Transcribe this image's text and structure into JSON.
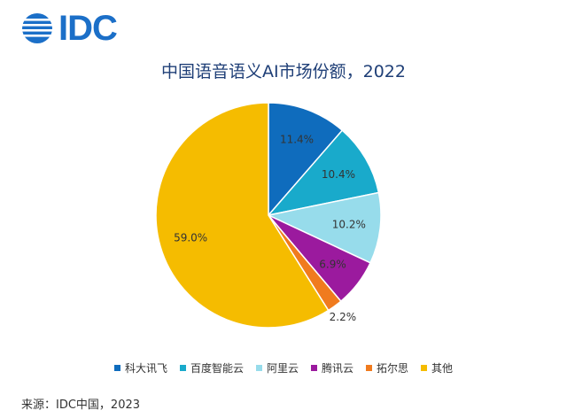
{
  "logo": {
    "text": "IDC"
  },
  "chart_data": {
    "type": "pie",
    "title": "中国语音语义AI市场份额，2022",
    "categories": [
      "科大讯飞",
      "百度智能云",
      "阿里云",
      "腾讯云",
      "拓尔思",
      "其他"
    ],
    "values": [
      11.4,
      10.4,
      10.2,
      6.9,
      2.2,
      59.0
    ],
    "labels": [
      "11.4%",
      "10.4%",
      "10.2%",
      "6.9%",
      "2.2%",
      "59.0%"
    ],
    "colors": [
      "#0F6CBD",
      "#19AACB",
      "#97DCEB",
      "#9B1A9E",
      "#F07B1E",
      "#F5BC00"
    ],
    "legend_position": "bottom",
    "start_angle_deg": 0,
    "direction": "clockwise"
  },
  "source": "来源：IDC中国，2023"
}
